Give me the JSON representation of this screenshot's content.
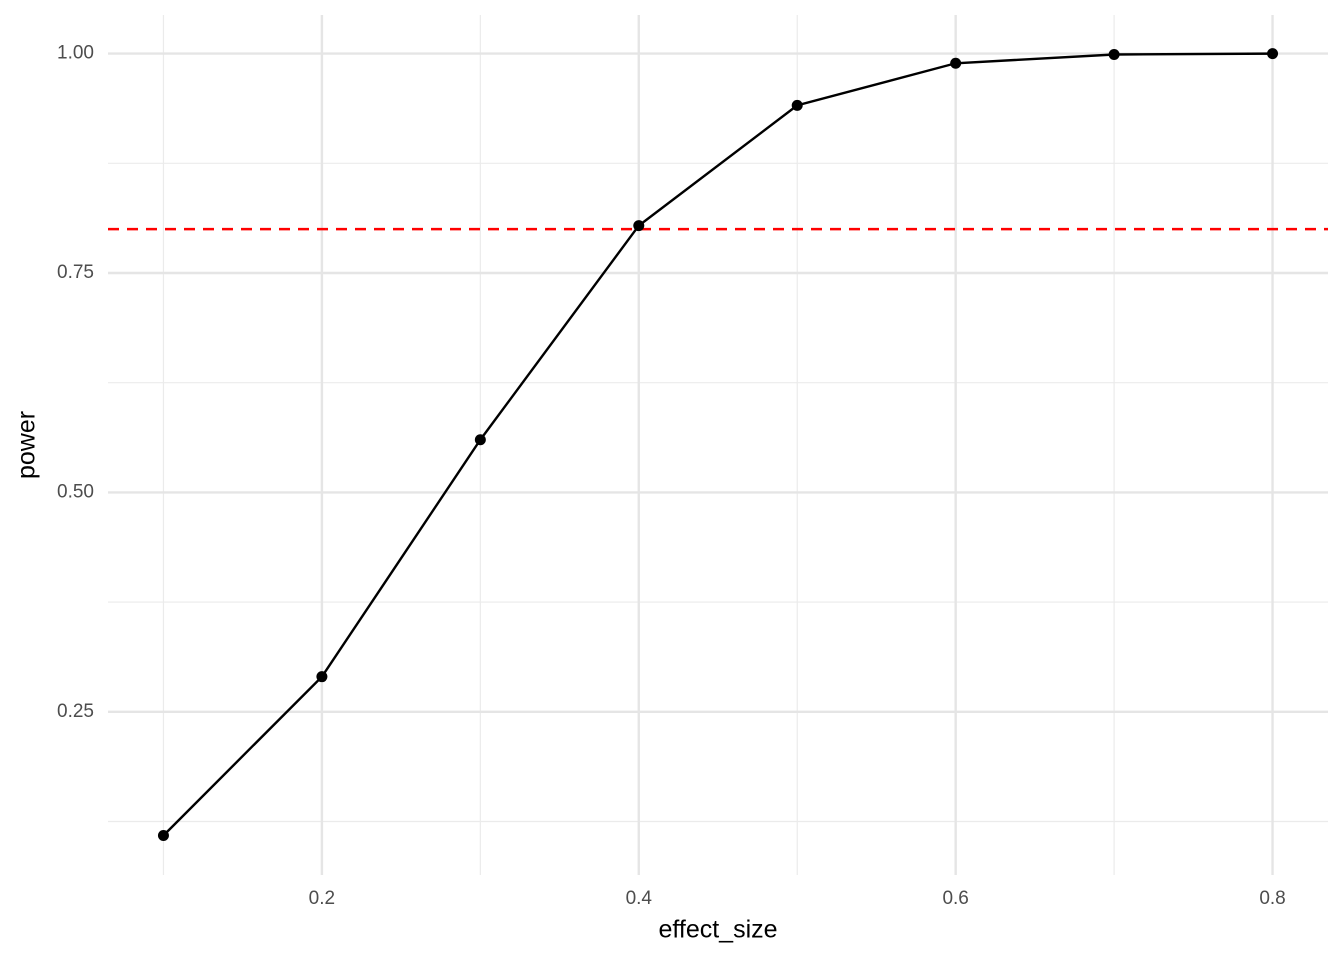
{
  "chart_data": {
    "type": "line",
    "x_label": "effect_size",
    "y_label": "power",
    "x": [
      0.1,
      0.2,
      0.3,
      0.4,
      0.5,
      0.6,
      0.7,
      0.8
    ],
    "series": [
      {
        "color": "#000000",
        "values": [
          0.109,
          0.29,
          0.56,
          0.804,
          0.941,
          0.989,
          0.999,
          1.0
        ]
      }
    ],
    "xlim": [
      0.065,
      0.835
    ],
    "ylim": [
      0.064,
      1.044
    ],
    "xticks": [
      0.2,
      0.4,
      0.6,
      0.8
    ],
    "yticks": [
      {
        "value": 0.25,
        "label": "0.25"
      },
      {
        "value": 0.5,
        "label": "0.50"
      },
      {
        "value": 0.75,
        "label": "0.75"
      },
      {
        "value": 1.0,
        "label": "1.00"
      }
    ],
    "reference_line": {
      "value": 0.8,
      "color": "#ff0000",
      "style": "dashed"
    },
    "grid": true,
    "markers": true
  }
}
